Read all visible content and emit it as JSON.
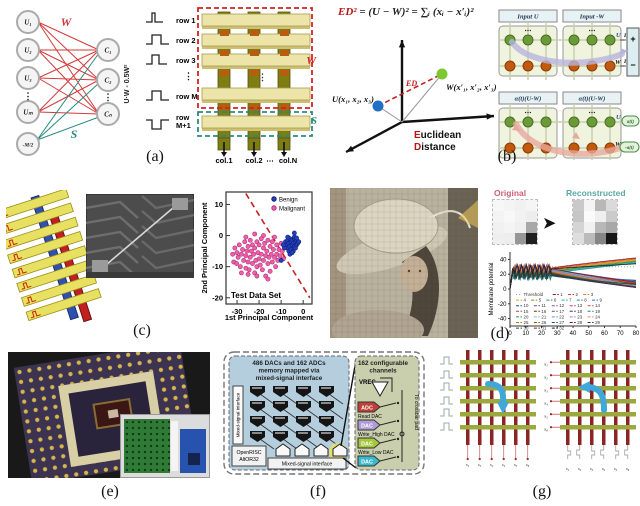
{
  "figure": {
    "captions": {
      "a": "(a)",
      "b": "(b)",
      "c": "(c)",
      "d": "(d)",
      "e": "(e)",
      "f": "(f)",
      "g": "(g)"
    },
    "panel_a": {
      "left_nodes": [
        "U₁",
        "U₂",
        "U₃",
        "Uₘ"
      ],
      "bias_node": "-M/2",
      "right_nodes": [
        "C₁",
        "C₂",
        "Cₙ"
      ],
      "dots": "⋮",
      "w_label": "W",
      "s_label": "S",
      "rotated_label": "U·W - 0.5W²",
      "row_labels": [
        "row 1",
        "row 2",
        "row 3",
        "row M"
      ],
      "row_last_label_1": "row",
      "row_last_label_2": "M+1",
      "col_labels": [
        "col.1",
        "col.2",
        "⋯",
        "col.N"
      ]
    },
    "panel_b": {
      "formula_ed": "ED²",
      "formula_rest": " = (U − W)² = ∑ᵢ (xᵢ − x′ᵢ)²",
      "point_u": "U(x₁, x₂, x₃)",
      "point_w": "W(x′₁, x′₂, x′₃)",
      "ed_label": "ED",
      "euclidean_1_red": "E",
      "euclidean_1_rest": "uclidean",
      "euclidean_2_red": "D",
      "euclidean_2_rest": "istance",
      "top_headers": [
        "Input U",
        "Input -W"
      ],
      "bottom_headers": [
        "α(t)(U-W)",
        "α(t)(U-W)"
      ],
      "row_u": "U",
      "row_w": "W",
      "dots": "⋯",
      "i1": "I₁",
      "i2": "I₂",
      "plus": "+",
      "minus": "−",
      "at_pos": "a(t)",
      "at_neg": "-a(t)"
    },
    "panel_d": {
      "original_label": "Original",
      "reconstructed_label": "Reconstructed",
      "original_patch": [
        "#f7f7f7",
        "#f4f4f4",
        "#f1f1f1",
        "#f5f5f5",
        "#f4f4f4",
        "#f8f8f8",
        "#f2f2f2",
        "#ededed",
        "#f1f1f1",
        "#f4f4f4",
        "#efefef",
        "#a8a8a8",
        "#efefef",
        "#ededed",
        "#979797",
        "#1f1f1f"
      ],
      "reconstructed_patch": [
        "#c9c9c9",
        "#f4f4f4",
        "#b8b8b8",
        "#dadada",
        "#c6c6c6",
        "#fafafa",
        "#efefef",
        "#cacaca",
        "#d4d4d4",
        "#f1f1f1",
        "#b8b8b8",
        "#a8a8a8",
        "#dedede",
        "#bbbbbb",
        "#868686",
        "#161616"
      ]
    },
    "panel_f": {
      "blue_title": [
        "486 DACs and 162 ADCs",
        "memory mapped via",
        "mixed-signal interface"
      ],
      "left_box": "Mixed-signal interface",
      "cpu_box": [
        "OpenRISC",
        "AltOR32"
      ],
      "bottom_box": "Mixed-signal interface",
      "green_title": [
        "162 configurable",
        "channels"
      ],
      "vreg": "VREG",
      "adc": "ADC",
      "dac": "DAC",
      "read_dac": "Read DAC",
      "write_high_dac": "Write_High DAC",
      "write_low_dac": "Write_Low DAC",
      "to_crossbar": "To crossbar pad"
    },
    "panel_g": {
      "x_labels": [
        "x₁",
        "x₂",
        "x₃",
        "x₄",
        "x₅",
        "x₆"
      ],
      "s_labels_left": [
        "s₁",
        "s₂",
        "s₃",
        "s₄",
        "s₅",
        "s₆"
      ],
      "s_labels_right": [
        "s₁",
        "s₂",
        "s₃",
        "s₄",
        "s₅",
        "s₆"
      ]
    }
  },
  "chart_data": [
    {
      "type": "scatter",
      "title": "Test Data Set",
      "xlabel": "1st Principal Component",
      "ylabel": "2nd Principal Component",
      "xlim": [
        -35,
        4
      ],
      "ylim": [
        -22,
        14
      ],
      "x_ticks": [
        -30,
        -20,
        -10,
        0
      ],
      "y_ticks": [
        10,
        0,
        -10,
        -20
      ],
      "legend_position": "top-right",
      "boundary_line": {
        "from": [
          -26,
          13.5
        ],
        "to": [
          3,
          -20
        ],
        "style": "dashed",
        "color": "#c42020"
      },
      "series": [
        {
          "name": "Benign",
          "color": "#2440c0",
          "edge": "#101f70",
          "points": [
            [
              -8,
              -2
            ],
            [
              -7.5,
              -3
            ],
            [
              -7,
              -1.5
            ],
            [
              -7,
              -4
            ],
            [
              -6.5,
              -2.5
            ],
            [
              -6.5,
              -5
            ],
            [
              -6,
              -1
            ],
            [
              -6,
              -3.5
            ],
            [
              -5.5,
              -2
            ],
            [
              -5.5,
              -4.5
            ],
            [
              -5,
              -1.5
            ],
            [
              -5,
              -3
            ],
            [
              -4.5,
              -2.5
            ],
            [
              -4.5,
              -5
            ],
            [
              -4,
              -1
            ],
            [
              -4,
              -3.5
            ],
            [
              -3.5,
              -2
            ],
            [
              -3.5,
              -4
            ],
            [
              -3,
              -1.5
            ],
            [
              -3,
              -3
            ],
            [
              -2.5,
              -2.5
            ],
            [
              -2,
              -2
            ],
            [
              -6,
              -6
            ],
            [
              -8.5,
              -4
            ],
            [
              -4,
              -0.5
            ],
            [
              -5,
              -5.5
            ],
            [
              -7,
              -0.5
            ],
            [
              -3,
              -0.8
            ],
            [
              -9,
              -3
            ],
            [
              -10,
              -8
            ],
            [
              -4,
              0.8
            ]
          ]
        },
        {
          "name": "Malignant",
          "color": "#ef5fa7",
          "edge": "#b0307a",
          "points": [
            [
              -32,
              -6
            ],
            [
              -31.5,
              -8.5
            ],
            [
              -31,
              -4
            ],
            [
              -30.2,
              -9
            ],
            [
              -30,
              -5.5
            ],
            [
              -29.5,
              -7
            ],
            [
              -29,
              -3
            ],
            [
              -28.5,
              -10
            ],
            [
              -28,
              -6
            ],
            [
              -28,
              -12
            ],
            [
              -27.5,
              -4.5
            ],
            [
              -27,
              -8
            ],
            [
              -26.5,
              -2
            ],
            [
              -26,
              -6.5
            ],
            [
              -26,
              -10.5
            ],
            [
              -25.5,
              -5
            ],
            [
              -25,
              -8.5
            ],
            [
              -25,
              -3.5
            ],
            [
              -24.5,
              -11
            ],
            [
              -24,
              -1.5
            ],
            [
              -24,
              -7
            ],
            [
              -23.5,
              -5
            ],
            [
              -23,
              -9
            ],
            [
              -23,
              -3
            ],
            [
              -22.5,
              -6
            ],
            [
              -22,
              -12
            ],
            [
              -22,
              -4
            ],
            [
              -21.5,
              -8
            ],
            [
              -21,
              -2
            ],
            [
              -21,
              -10
            ],
            [
              -20.5,
              -5.5
            ],
            [
              -20,
              -7.5
            ],
            [
              -20,
              -3
            ],
            [
              -19.5,
              -9.5
            ],
            [
              -19,
              -1
            ],
            [
              -19,
              -6
            ],
            [
              -18.5,
              -11
            ],
            [
              -18,
              -4
            ],
            [
              -18,
              -8
            ],
            [
              -17.5,
              -2.5
            ],
            [
              -17,
              -6.5
            ],
            [
              -17,
              -13
            ],
            [
              -16.5,
              -5
            ],
            [
              -16,
              -9
            ],
            [
              -16,
              -1.5
            ],
            [
              -15.5,
              -7
            ],
            [
              -15,
              -3.5
            ],
            [
              -15,
              -11.5
            ],
            [
              -14.5,
              -6
            ],
            [
              -14,
              -2
            ],
            [
              -14,
              -8.5
            ],
            [
              -13.5,
              -4.5
            ],
            [
              -13,
              -7
            ],
            [
              -12.5,
              -10
            ],
            [
              -12,
              -3
            ],
            [
              -12,
              -6
            ],
            [
              -11.5,
              -8
            ],
            [
              -11,
              -4.5
            ],
            [
              -10.5,
              -6.5
            ],
            [
              -10,
              -2.5
            ],
            [
              -22,
              0.5
            ],
            [
              -18,
              0
            ],
            [
              -26,
              -0.5
            ],
            [
              -9.5,
              -5
            ],
            [
              -9,
              -7.5
            ],
            [
              -13,
              -0.5
            ],
            [
              -16,
              -14
            ],
            [
              -21,
              -13
            ],
            [
              -25,
              -12.5
            ],
            [
              -8.5,
              -3.5
            ]
          ]
        }
      ]
    },
    {
      "type": "line",
      "ylabel": "Membrane potential",
      "xlim": [
        0,
        80
      ],
      "ylim": [
        -50,
        50
      ],
      "x_ticks": [
        0,
        10,
        20,
        30,
        40,
        50,
        60,
        70,
        80
      ],
      "y_ticks": [
        -40,
        -20,
        0,
        20,
        40
      ],
      "threshold_label": "Threshold",
      "threshold_value": 30,
      "threshold_color": "#9aa8a8",
      "legend_rows": [
        [
          "Threshold",
          "1",
          "2",
          "3"
        ],
        [
          "4",
          "5",
          "6",
          "7",
          "8",
          "9"
        ],
        [
          "10",
          "11",
          "12",
          "13",
          "14"
        ],
        [
          "15",
          "16",
          "17",
          "18",
          "19"
        ],
        [
          "20",
          "21",
          "22",
          "23",
          "24"
        ],
        [
          "25",
          "26",
          "27",
          "28",
          "29"
        ],
        [
          "30",
          "31",
          "32"
        ]
      ],
      "series": [
        {
          "label": "1",
          "color": "#8b1a1a",
          "final": 42
        },
        {
          "label": "2",
          "color": "#d4452c",
          "final": 41
        },
        {
          "label": "3",
          "color": "#e67e22",
          "final": 40
        },
        {
          "label": "4",
          "color": "#c9a227",
          "final": 39
        },
        {
          "label": "5",
          "color": "#7f8c1a",
          "final": 38
        },
        {
          "label": "6",
          "color": "#2e8b57",
          "final": 37
        },
        {
          "label": "7",
          "color": "#1abc9c",
          "final": 36
        },
        {
          "label": "8",
          "color": "#18879b",
          "final": 35
        },
        {
          "label": "9",
          "color": "#2980b9",
          "final": 12
        },
        {
          "label": "10",
          "color": "#1f4e9c",
          "final": 11
        },
        {
          "label": "11",
          "color": "#5b4aa0",
          "final": 10
        },
        {
          "label": "12",
          "color": "#8e44ad",
          "final": 9
        },
        {
          "label": "13",
          "color": "#c23b80",
          "final": 8
        },
        {
          "label": "14",
          "color": "#e74c3c",
          "final": 8
        },
        {
          "label": "15",
          "color": "#a0522d",
          "final": 7
        },
        {
          "label": "16",
          "color": "#6e2c00",
          "final": 7
        },
        {
          "label": "17",
          "color": "#515a5a",
          "final": 6
        },
        {
          "label": "18",
          "color": "#2c3e50",
          "final": 6
        },
        {
          "label": "19",
          "color": "#148f77",
          "final": 5
        },
        {
          "label": "20",
          "color": "#239b56",
          "final": 5
        },
        {
          "label": "21",
          "color": "#73c6b6",
          "final": 5
        },
        {
          "label": "22",
          "color": "#5499c7",
          "final": 4
        },
        {
          "label": "23",
          "color": "#af7ac5",
          "final": 4
        },
        {
          "label": "24",
          "color": "#d98880",
          "final": 4
        },
        {
          "label": "25",
          "color": "#b9770e",
          "final": 3
        },
        {
          "label": "26",
          "color": "#7d6608",
          "final": 3
        },
        {
          "label": "27",
          "color": "#1b4f72",
          "final": 3
        },
        {
          "label": "28",
          "color": "#641e16",
          "final": 2
        },
        {
          "label": "29",
          "color": "#4a235a",
          "final": 2
        },
        {
          "label": "30",
          "color": "#0b5345",
          "final": 6
        },
        {
          "label": "31",
          "color": "#7b241c",
          "final": 9
        },
        {
          "label": "32",
          "color": "#17202a",
          "final": 34
        }
      ]
    }
  ]
}
